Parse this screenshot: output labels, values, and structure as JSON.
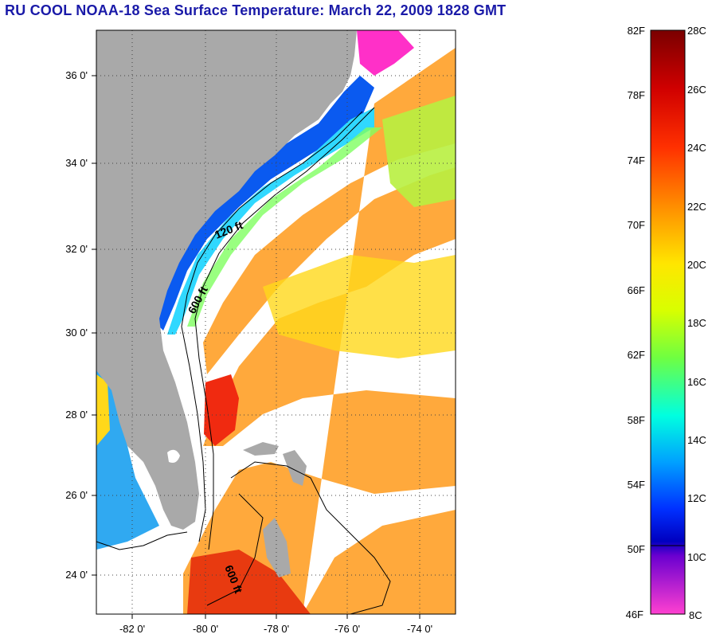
{
  "title": "RU COOL  NOAA-18  Sea Surface Temperature:  March 22, 2009 1828 GMT",
  "map": {
    "lat_labels": [
      "36 0'",
      "34 0'",
      "32 0'",
      "30 0'",
      "28 0'",
      "26 0'",
      "24 0'"
    ],
    "lon_labels": [
      "-82 0'",
      "-80 0'",
      "-78 0'",
      "-76 0'",
      "-74 0'"
    ],
    "contours": [
      "120 ft",
      "600 ft",
      "600 ft"
    ],
    "colors": {
      "land": "#a9a9a9",
      "ocean_no_data": "#ffffff",
      "contour": "#000000",
      "grid": "#444444"
    }
  },
  "colorbar": {
    "fahrenheit_labels": [
      "82F",
      "78F",
      "74F",
      "70F",
      "66F",
      "62F",
      "58F",
      "54F",
      "50F",
      "46F"
    ],
    "celsius_labels": [
      "28C",
      "26C",
      "24C",
      "22C",
      "20C",
      "18C",
      "16C",
      "14C",
      "12C",
      "10C",
      "8C"
    ]
  }
}
